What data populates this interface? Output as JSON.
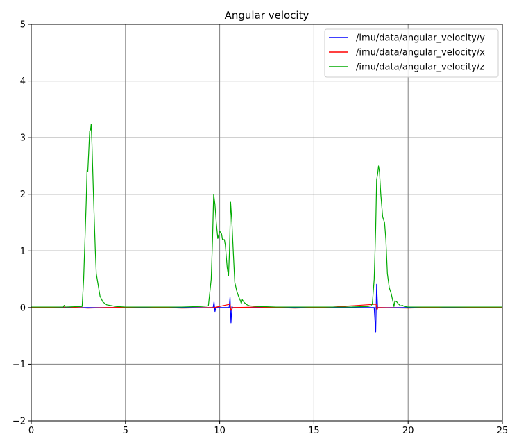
{
  "chart_data": {
    "type": "line",
    "title": "Angular velocity",
    "xlabel": "",
    "ylabel": "",
    "xlim": [
      0,
      25
    ],
    "ylim": [
      -2,
      5
    ],
    "xticks": [
      0,
      5,
      10,
      15,
      20,
      25
    ],
    "yticks": [
      -2,
      -1,
      0,
      1,
      2,
      3,
      4,
      5
    ],
    "grid": true,
    "legend_position": "top-right",
    "series": [
      {
        "name": "/imu/data/angular_velocity/y",
        "color": "#0000ff",
        "points": [
          [
            0,
            0
          ],
          [
            9.65,
            0
          ],
          [
            9.7,
            0.1
          ],
          [
            9.75,
            -0.07
          ],
          [
            9.8,
            0
          ],
          [
            10.5,
            0
          ],
          [
            10.55,
            0.18
          ],
          [
            10.6,
            -0.27
          ],
          [
            10.65,
            0.02
          ],
          [
            10.7,
            0
          ],
          [
            18.2,
            0
          ],
          [
            18.28,
            -0.43
          ],
          [
            18.33,
            0.41
          ],
          [
            18.38,
            0
          ],
          [
            25,
            0
          ]
        ]
      },
      {
        "name": "/imu/data/angular_velocity/x",
        "color": "#ff0000",
        "points": [
          [
            0,
            0
          ],
          [
            2,
            0.01
          ],
          [
            3,
            -0.01
          ],
          [
            4,
            0
          ],
          [
            6,
            0.01
          ],
          [
            8,
            -0.01
          ],
          [
            9.7,
            0
          ],
          [
            10.55,
            0.06
          ],
          [
            10.6,
            -0.05
          ],
          [
            10.7,
            0
          ],
          [
            12,
            0.01
          ],
          [
            14,
            -0.01
          ],
          [
            16,
            0.01
          ],
          [
            18.3,
            0.06
          ],
          [
            18.35,
            -0.04
          ],
          [
            18.4,
            0
          ],
          [
            20,
            -0.01
          ],
          [
            22,
            0.01
          ],
          [
            25,
            0
          ]
        ]
      },
      {
        "name": "/imu/data/angular_velocity/z",
        "color": "#00aa00",
        "points": [
          [
            0,
            0.01
          ],
          [
            1.7,
            0.01
          ],
          [
            1.75,
            0.04
          ],
          [
            1.8,
            0.01
          ],
          [
            2.7,
            0.02
          ],
          [
            2.78,
            0.5
          ],
          [
            2.85,
            1.2
          ],
          [
            2.92,
            1.9
          ],
          [
            2.96,
            2.42
          ],
          [
            3.0,
            2.4
          ],
          [
            3.05,
            2.75
          ],
          [
            3.1,
            3.12
          ],
          [
            3.15,
            3.14
          ],
          [
            3.18,
            3.24
          ],
          [
            3.22,
            2.9
          ],
          [
            3.3,
            2.0
          ],
          [
            3.4,
            1.0
          ],
          [
            3.45,
            0.6
          ],
          [
            3.55,
            0.4
          ],
          [
            3.65,
            0.2
          ],
          [
            3.8,
            0.1
          ],
          [
            4.0,
            0.05
          ],
          [
            4.5,
            0.02
          ],
          [
            5,
            0.01
          ],
          [
            6,
            0.01
          ],
          [
            7,
            0.01
          ],
          [
            8,
            0.01
          ],
          [
            9.0,
            0.02
          ],
          [
            9.4,
            0.03
          ],
          [
            9.55,
            0.5
          ],
          [
            9.62,
            1.2
          ],
          [
            9.68,
            2.0
          ],
          [
            9.75,
            1.82
          ],
          [
            9.82,
            1.5
          ],
          [
            9.9,
            1.22
          ],
          [
            10.0,
            1.35
          ],
          [
            10.1,
            1.3
          ],
          [
            10.15,
            1.2
          ],
          [
            10.25,
            1.2
          ],
          [
            10.3,
            1.1
          ],
          [
            10.4,
            0.7
          ],
          [
            10.47,
            0.56
          ],
          [
            10.52,
            1.0
          ],
          [
            10.58,
            1.86
          ],
          [
            10.65,
            1.5
          ],
          [
            10.72,
            1.0
          ],
          [
            10.8,
            0.45
          ],
          [
            10.9,
            0.3
          ],
          [
            11.0,
            0.2
          ],
          [
            11.1,
            0.12
          ],
          [
            11.15,
            0.07
          ],
          [
            11.2,
            0.14
          ],
          [
            11.3,
            0.09
          ],
          [
            11.45,
            0.05
          ],
          [
            11.6,
            0.03
          ],
          [
            12,
            0.02
          ],
          [
            13,
            0.01
          ],
          [
            14,
            0.01
          ],
          [
            15,
            0.01
          ],
          [
            16,
            0.01
          ],
          [
            17,
            0.01
          ],
          [
            17.9,
            0.02
          ],
          [
            18.0,
            0.03
          ],
          [
            18.1,
            0.06
          ],
          [
            18.2,
            0.5
          ],
          [
            18.28,
            1.4
          ],
          [
            18.33,
            2.26
          ],
          [
            18.38,
            2.35
          ],
          [
            18.43,
            2.5
          ],
          [
            18.48,
            2.4
          ],
          [
            18.55,
            2.0
          ],
          [
            18.65,
            1.6
          ],
          [
            18.75,
            1.5
          ],
          [
            18.82,
            1.2
          ],
          [
            18.9,
            0.6
          ],
          [
            19.0,
            0.35
          ],
          [
            19.1,
            0.25
          ],
          [
            19.2,
            0.1
          ],
          [
            19.25,
            0.02
          ],
          [
            19.3,
            0.12
          ],
          [
            19.4,
            0.1
          ],
          [
            19.5,
            0.06
          ],
          [
            19.6,
            0.03
          ],
          [
            19.7,
            0.04
          ],
          [
            19.8,
            0.02
          ],
          [
            20,
            0.01
          ],
          [
            22,
            0.01
          ],
          [
            25,
            0.01
          ]
        ]
      }
    ]
  }
}
